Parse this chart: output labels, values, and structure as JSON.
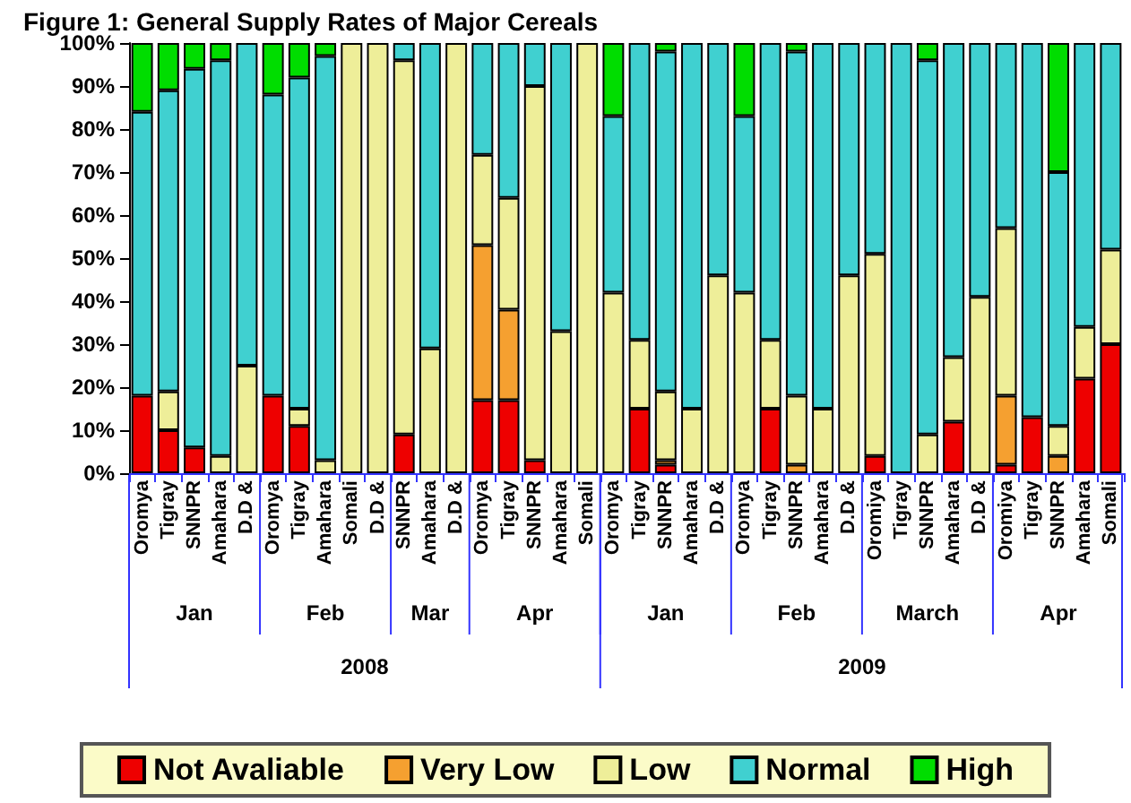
{
  "chart_data": {
    "type": "bar",
    "title": "Figure 1: General Supply Rates of Major Cereals",
    "stacked": true,
    "legend": "bottom",
    "categories": [
      "Oromya",
      "Tigray",
      "SNNPR",
      "Amahara",
      "D.D &",
      "Oromya",
      "Tigray",
      "Amahara",
      "Somali",
      "D.D &",
      "SNNPR",
      "Amahara",
      "D.D &",
      "Oromya",
      "Tigray",
      "SNNPR",
      "Amahara",
      "Somali",
      "Oromya",
      "Tigray",
      "SNNPR",
      "Amahara",
      "D.D &",
      "Oromya",
      "Tigray",
      "SNNPR",
      "Amahara",
      "D.D &",
      "Oromiya",
      "Tigray",
      "SNNPR",
      "Amahara",
      "D.D &",
      "Oromiya",
      "Tigray",
      "SNNPR",
      "Amahara",
      "Somali"
    ],
    "ylim": [
      0,
      100
    ],
    "yticks": [
      {
        "value": 0,
        "label": "0%"
      },
      {
        "value": 10,
        "label": "10%"
      },
      {
        "value": 20,
        "label": "20%"
      },
      {
        "value": 30,
        "label": "30%"
      },
      {
        "value": 40,
        "label": "40%"
      },
      {
        "value": 50,
        "label": "50%"
      },
      {
        "value": 60,
        "label": "60%"
      },
      {
        "value": 70,
        "label": "70%"
      },
      {
        "value": 80,
        "label": "80%"
      },
      {
        "value": 90,
        "label": "90%"
      },
      {
        "value": 100,
        "label": "100%"
      }
    ],
    "series": [
      {
        "name": "Not Avaliable",
        "color": "#ee0000",
        "values": [
          18,
          10,
          6,
          null,
          null,
          18,
          11,
          null,
          null,
          null,
          9,
          null,
          null,
          17,
          17,
          3,
          null,
          null,
          null,
          15,
          2,
          null,
          null,
          null,
          15,
          null,
          null,
          null,
          4,
          null,
          null,
          12,
          null,
          2,
          13,
          null,
          22,
          30
        ]
      },
      {
        "name": "Very Low",
        "color": "#f5a030",
        "values": [
          null,
          null,
          null,
          null,
          null,
          null,
          null,
          null,
          null,
          null,
          null,
          null,
          null,
          36,
          21,
          null,
          null,
          null,
          null,
          null,
          1,
          null,
          null,
          null,
          null,
          2,
          null,
          null,
          null,
          null,
          null,
          null,
          null,
          16,
          null,
          4,
          null,
          null
        ]
      },
      {
        "name": "Low",
        "color": "#eeee99",
        "values": [
          null,
          9,
          null,
          4,
          25,
          null,
          4,
          3,
          100,
          100,
          87,
          29,
          100,
          21,
          26,
          87,
          33,
          100,
          42,
          16,
          16,
          15,
          46,
          42,
          16,
          16,
          15,
          46,
          47,
          null,
          9,
          15,
          41,
          39,
          null,
          7,
          12,
          22
        ]
      },
      {
        "name": "Normal",
        "color": "#40d0d0",
        "values": [
          66,
          70,
          88,
          92,
          75,
          70,
          77,
          94,
          null,
          null,
          4,
          71,
          null,
          26,
          36,
          10,
          67,
          null,
          41,
          69,
          79,
          85,
          54,
          41,
          69,
          80,
          85,
          54,
          49,
          100,
          87,
          73,
          59,
          43,
          87,
          59,
          66,
          48
        ]
      },
      {
        "name": "High",
        "color": "#00dd00",
        "values": [
          16,
          11,
          6,
          4,
          null,
          12,
          8,
          3,
          null,
          null,
          null,
          null,
          null,
          null,
          null,
          null,
          null,
          null,
          17,
          null,
          2,
          null,
          null,
          17,
          null,
          2,
          null,
          null,
          null,
          null,
          4,
          null,
          null,
          null,
          null,
          30,
          null,
          null
        ]
      }
    ],
    "annotations": [
      "Jan",
      "Feb",
      "Mar",
      "Apr",
      "Jan",
      "Feb",
      "March",
      "Apr",
      "2008",
      "2009"
    ]
  }
}
